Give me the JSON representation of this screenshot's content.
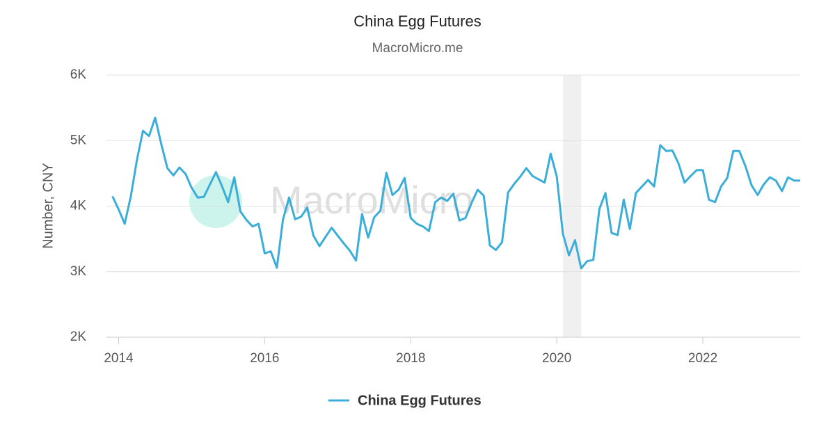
{
  "chart_data": {
    "type": "line",
    "title": "China Egg Futures",
    "subtitle": "MacroMicro.me",
    "watermark": "MacroMicro",
    "y_label": "Number, CNY",
    "x": [
      "2013-12",
      "2014-01",
      "2014-02",
      "2014-03",
      "2014-04",
      "2014-05",
      "2014-06",
      "2014-07",
      "2014-08",
      "2014-09",
      "2014-10",
      "2014-11",
      "2014-12",
      "2015-01",
      "2015-02",
      "2015-03",
      "2015-04",
      "2015-05",
      "2015-06",
      "2015-07",
      "2015-08",
      "2015-09",
      "2015-10",
      "2015-11",
      "2015-12",
      "2016-01",
      "2016-02",
      "2016-03",
      "2016-04",
      "2016-05",
      "2016-06",
      "2016-07",
      "2016-08",
      "2016-09",
      "2016-10",
      "2016-11",
      "2016-12",
      "2017-01",
      "2017-02",
      "2017-03",
      "2017-04",
      "2017-05",
      "2017-06",
      "2017-07",
      "2017-08",
      "2017-09",
      "2017-10",
      "2017-11",
      "2017-12",
      "2018-01",
      "2018-02",
      "2018-03",
      "2018-04",
      "2018-05",
      "2018-06",
      "2018-07",
      "2018-08",
      "2018-09",
      "2018-10",
      "2018-11",
      "2018-12",
      "2019-01",
      "2019-02",
      "2019-03",
      "2019-04",
      "2019-05",
      "2019-06",
      "2019-07",
      "2019-08",
      "2019-09",
      "2019-10",
      "2019-11",
      "2019-12",
      "2020-01",
      "2020-02",
      "2020-03",
      "2020-04",
      "2020-05",
      "2020-06",
      "2020-07",
      "2020-08",
      "2020-09",
      "2020-10",
      "2020-11",
      "2020-12",
      "2021-01",
      "2021-02",
      "2021-03",
      "2021-04",
      "2021-05",
      "2021-06",
      "2021-07",
      "2021-08",
      "2021-09",
      "2021-10",
      "2021-11",
      "2021-12",
      "2022-01",
      "2022-02",
      "2022-03",
      "2022-04",
      "2022-05",
      "2022-06",
      "2022-07",
      "2022-08",
      "2022-09",
      "2022-10",
      "2022-11",
      "2022-12",
      "2023-01",
      "2023-02",
      "2023-03",
      "2023-04",
      "2023-05"
    ],
    "series": [
      {
        "name": "China Egg Futures",
        "color": "#3aaed8",
        "values": [
          4150,
          3950,
          3730,
          4150,
          4700,
          5150,
          5070,
          5350,
          4950,
          4580,
          4470,
          4590,
          4490,
          4280,
          4130,
          4140,
          4330,
          4520,
          4300,
          4060,
          4440,
          3920,
          3790,
          3690,
          3730,
          3280,
          3310,
          3060,
          3790,
          4130,
          3800,
          3840,
          3980,
          3550,
          3390,
          3530,
          3670,
          3550,
          3430,
          3320,
          3170,
          3880,
          3520,
          3830,
          3930,
          4510,
          4170,
          4250,
          4430,
          3820,
          3730,
          3690,
          3620,
          4060,
          4130,
          4080,
          4190,
          3780,
          3820,
          4050,
          4250,
          4160,
          3400,
          3330,
          3450,
          4210,
          4340,
          4450,
          4580,
          4460,
          4410,
          4360,
          4800,
          4450,
          3580,
          3250,
          3480,
          3050,
          3160,
          3180,
          3960,
          4200,
          3590,
          3560,
          4100,
          3650,
          4200,
          4300,
          4400,
          4300,
          4930,
          4840,
          4850,
          4650,
          4360,
          4460,
          4550,
          4550,
          4100,
          4060,
          4300,
          4430,
          4840,
          4840,
          4610,
          4320,
          4170,
          4330,
          4440,
          4390,
          4230,
          4440,
          4390,
          4390
        ]
      }
    ],
    "highlight": {
      "start": "2020-02",
      "end": "2020-05",
      "color": "#f0f0f0"
    },
    "xlim": [
      "2013-11",
      "2023-05"
    ],
    "xticks": [
      "2014",
      "2016",
      "2018",
      "2020",
      "2022"
    ],
    "ylim": [
      2000,
      6000
    ],
    "yticks": [
      {
        "value": 2000,
        "label": "2K"
      },
      {
        "value": 3000,
        "label": "3K"
      },
      {
        "value": 4000,
        "label": "4K"
      },
      {
        "value": 5000,
        "label": "5K"
      },
      {
        "value": 6000,
        "label": "6K"
      }
    ],
    "grid": true,
    "legend": "bottom"
  }
}
